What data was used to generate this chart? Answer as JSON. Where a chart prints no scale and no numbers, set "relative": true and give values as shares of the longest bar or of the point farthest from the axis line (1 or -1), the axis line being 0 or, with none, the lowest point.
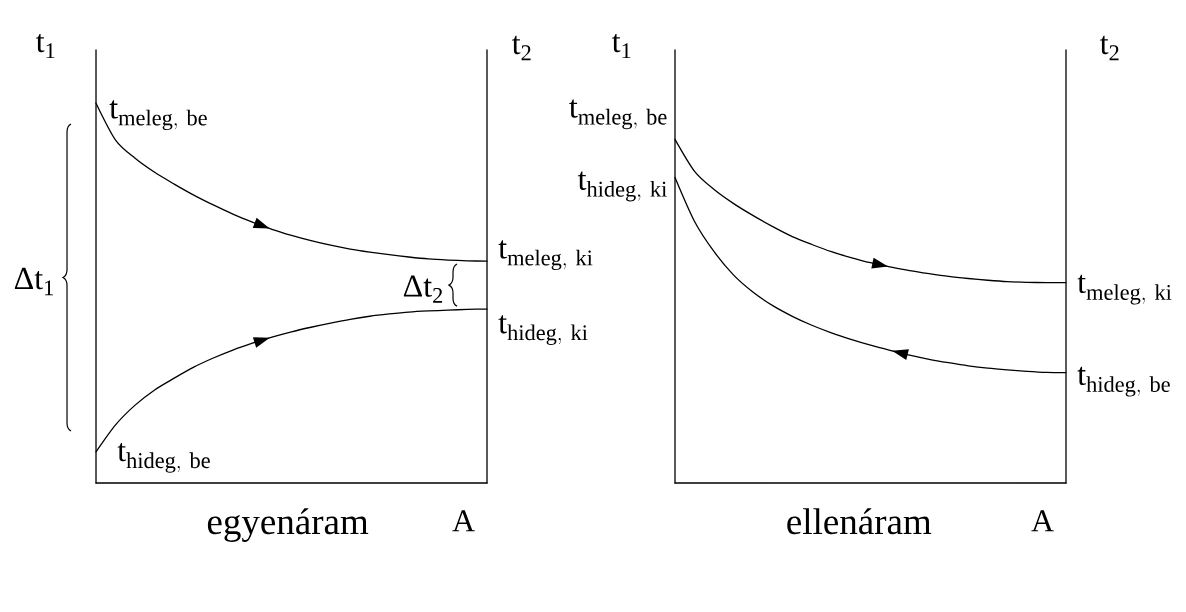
{
  "chart_data": [
    {
      "type": "line",
      "title": "egyenáram",
      "xlabel": "A",
      "ylabel": "t$_{1}$",
      "y2label": "t$_{2}$",
      "relative": true,
      "categories": [
        null,
        null,
        null,
        null,
        null,
        null,
        null,
        null,
        null,
        null,
        null,
        null,
        null,
        null,
        null,
        null,
        null,
        null,
        null,
        null,
        null
      ],
      "series": [
        {
          "color": "#000000",
          "values": [
            1.0,
            0.903,
            0.855,
            0.818,
            0.787,
            0.758,
            0.732,
            0.708,
            0.687,
            0.668,
            0.652,
            0.638,
            0.626,
            0.616,
            0.608,
            0.601,
            0.595,
            0.59,
            0.587,
            0.585,
            0.584
          ]
        },
        {
          "color": "#000000",
          "values": [
            0.082,
            0.153,
            0.205,
            0.245,
            0.276,
            0.305,
            0.329,
            0.35,
            0.368,
            0.384,
            0.398,
            0.41,
            0.421,
            0.431,
            0.439,
            0.445,
            0.45,
            0.453,
            0.455,
            0.457,
            0.458
          ]
        }
      ],
      "annotations": [
        "\\mathrm{t}_{\\mathrm{meleg,\\ be}}",
        "\\mathrm{t}_{\\mathrm{hideg,\\ be}}",
        "\\mathrm{t}_{\\mathrm{meleg,\\ ki}}",
        "\\mathrm{t}_{\\mathrm{hideg,\\ ki}}",
        "Δt$_{1}$",
        "Δt$_{2}$"
      ]
    },
    {
      "type": "line",
      "title": "ellenáram",
      "xlabel": "A",
      "ylabel": "t$_{1}$",
      "y2label": "t$_{2}$",
      "relative": true,
      "categories": [
        null,
        null,
        null,
        null,
        null,
        null,
        null,
        null,
        null,
        null,
        null,
        null,
        null,
        null,
        null,
        null,
        null,
        null,
        null,
        null,
        null
      ],
      "series": [
        {
          "color": "#000000",
          "values": [
            1.0,
            0.907,
            0.854,
            0.813,
            0.778,
            0.746,
            0.717,
            0.694,
            0.673,
            0.656,
            0.641,
            0.629,
            0.618,
            0.609,
            0.601,
            0.595,
            0.59,
            0.586,
            0.584,
            0.583,
            0.583
          ]
        },
        {
          "color": "#000000",
          "values": [
            0.889,
            0.761,
            0.673,
            0.605,
            0.555,
            0.516,
            0.485,
            0.459,
            0.437,
            0.418,
            0.401,
            0.386,
            0.372,
            0.36,
            0.35,
            0.341,
            0.334,
            0.329,
            0.325,
            0.322,
            0.321
          ]
        }
      ],
      "annotations": [
        "\\mathrm{t}_{\\mathrm{meleg,\\ be}}",
        "\\mathrm{t}_{\\mathrm{hideg,\\ ki}}",
        "\\mathrm{t}_{\\mathrm{meleg,\\ ki}}",
        "\\mathrm{t}_{\\mathrm{hideg,\\ be}}"
      ]
    }
  ]
}
